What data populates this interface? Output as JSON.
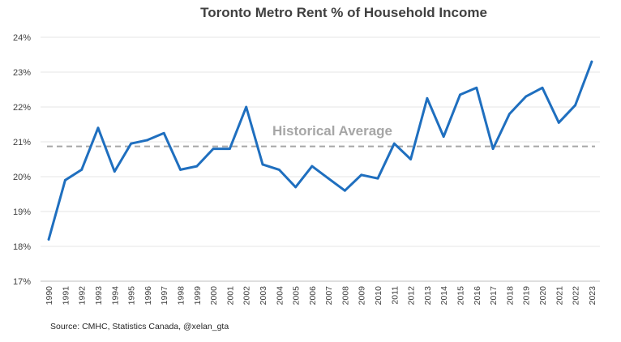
{
  "chart_data": {
    "type": "line",
    "title": "Toronto Metro Rent % of Household Income",
    "xlabel": "",
    "ylabel": "",
    "ylim": [
      17,
      24
    ],
    "yticks": [
      "17%",
      "18%",
      "19%",
      "20%",
      "21%",
      "22%",
      "23%",
      "24%"
    ],
    "grid": true,
    "legend": "none",
    "categories": [
      "1990",
      "1991",
      "1992",
      "1993",
      "1994",
      "1995",
      "1996",
      "1997",
      "1998",
      "1999",
      "2000",
      "2001",
      "2002",
      "2003",
      "2004",
      "2005",
      "2006",
      "2007",
      "2008",
      "2009",
      "2010",
      "2011",
      "2012",
      "2013",
      "2014",
      "2015",
      "2016",
      "2017",
      "2018",
      "2019",
      "2020",
      "2021",
      "2022",
      "2023"
    ],
    "series": [
      {
        "color": "#1f6fbf",
        "values": [
          18.2,
          19.9,
          20.2,
          21.4,
          20.15,
          20.95,
          21.05,
          21.25,
          20.2,
          20.3,
          20.8,
          20.8,
          22.0,
          20.35,
          20.2,
          19.7,
          20.3,
          19.95,
          19.6,
          20.05,
          19.95,
          20.95,
          20.5,
          22.25,
          21.15,
          22.35,
          22.55,
          20.8,
          21.8,
          22.3,
          22.55,
          21.55,
          22.05,
          23.3
        ]
      }
    ],
    "reference_line": {
      "label": "Historical Average",
      "value": 20.87,
      "color": "#a6a6a6"
    },
    "source": "Source: CMHC, Statistics Canada, @xelan_gta"
  }
}
